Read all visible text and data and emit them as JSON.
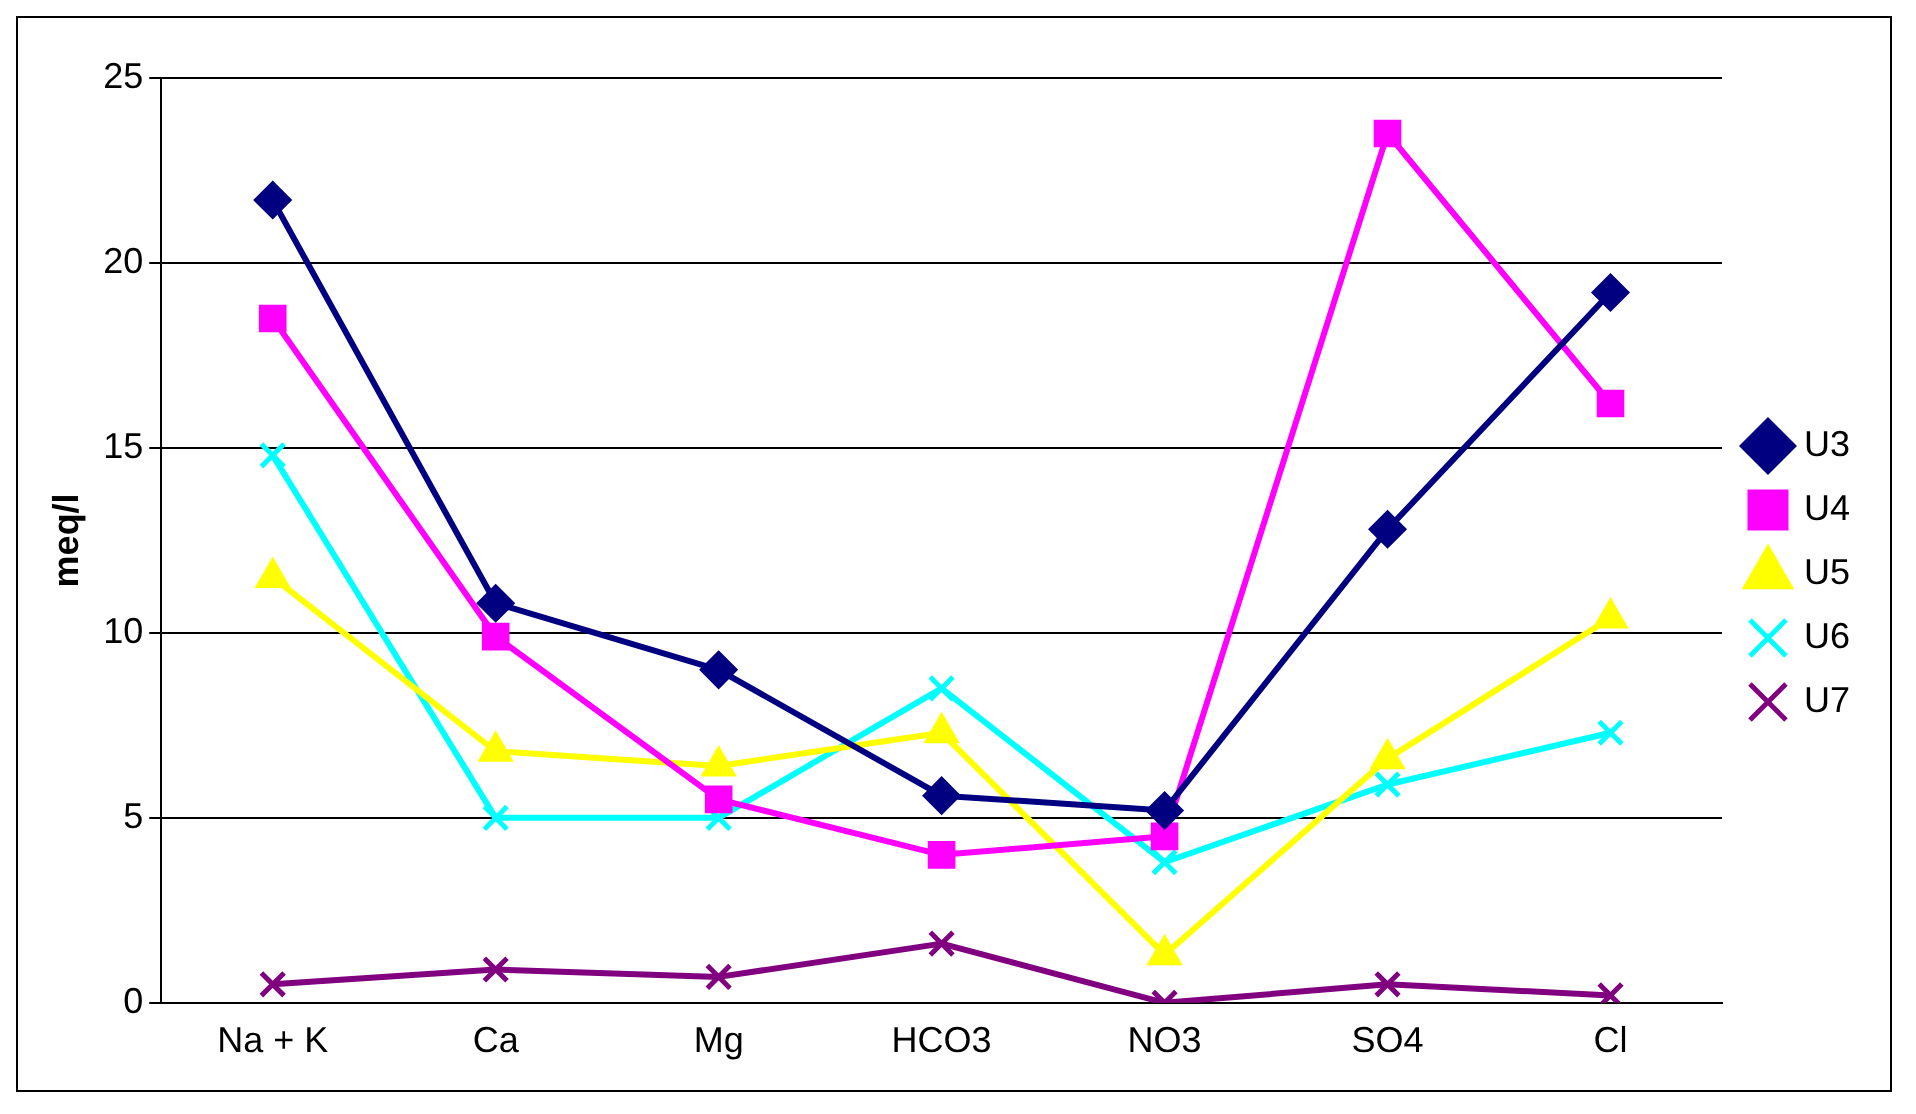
{
  "chart_data": {
    "type": "line",
    "ylabel": "meq/l",
    "categories": [
      "Na + K",
      "Ca",
      "Mg",
      "HCO3",
      "NO3",
      "SO4",
      "Cl"
    ],
    "series": [
      {
        "name": "U3",
        "color": "#000080",
        "marker": "diamond",
        "values": [
          21.7,
          10.8,
          9.0,
          5.6,
          5.2,
          12.8,
          19.2
        ]
      },
      {
        "name": "U4",
        "color": "#ff00ff",
        "marker": "square",
        "values": [
          18.5,
          9.9,
          5.5,
          4.0,
          4.5,
          23.5,
          16.2
        ]
      },
      {
        "name": "U5",
        "color": "#ffff00",
        "marker": "triangle",
        "values": [
          11.5,
          6.8,
          6.4,
          7.3,
          1.3,
          6.6,
          10.4
        ]
      },
      {
        "name": "U6",
        "color": "#00ffff",
        "marker": "cross",
        "values": [
          14.8,
          5.0,
          5.0,
          8.5,
          3.8,
          5.9,
          7.3
        ]
      },
      {
        "name": "U7",
        "color": "#800080",
        "marker": "cross",
        "values": [
          0.5,
          0.9,
          0.7,
          1.6,
          0.0,
          0.5,
          0.2
        ]
      }
    ],
    "ylim": [
      0,
      25
    ],
    "yticks": [
      0,
      5,
      10,
      15,
      20,
      25
    ],
    "grid": "y",
    "legend": "right",
    "line_style": "solid"
  }
}
